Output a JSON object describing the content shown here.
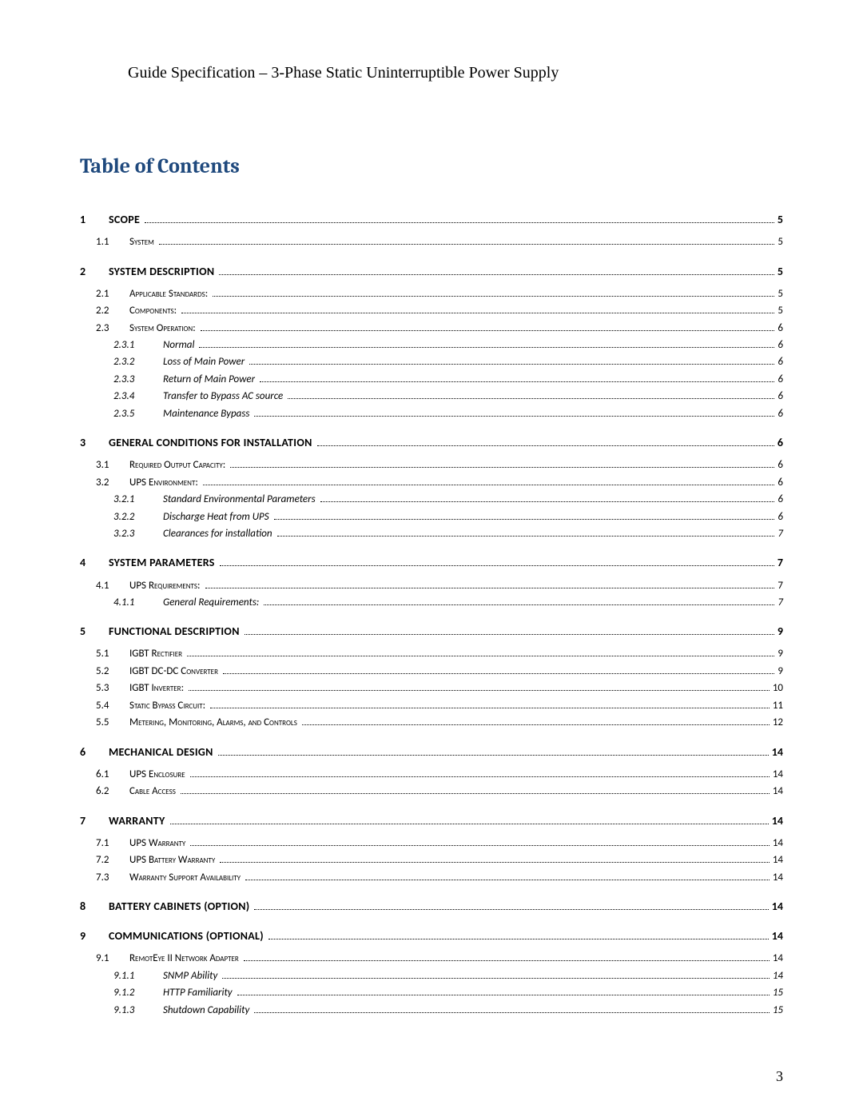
{
  "header": "Guide Specification – 3-Phase Static Uninterruptible Power Supply",
  "toc_heading": "Table of Contents",
  "page_number": "3",
  "entries": [
    {
      "level": 1,
      "num": "1",
      "title": "SCOPE",
      "page": "5"
    },
    {
      "level": 2,
      "num": "1.1",
      "title": "System",
      "page": "5"
    },
    {
      "level": 1,
      "num": "2",
      "title": "SYSTEM DESCRIPTION",
      "page": "5"
    },
    {
      "level": 2,
      "num": "2.1",
      "title": "Applicable Standards:",
      "page": "5"
    },
    {
      "level": 2,
      "num": "2.2",
      "title": "Components:",
      "page": "5"
    },
    {
      "level": 2,
      "num": "2.3",
      "title": "System Operation:",
      "page": "6"
    },
    {
      "level": 3,
      "num": "2.3.1",
      "title": "Normal",
      "page": "6"
    },
    {
      "level": 3,
      "num": "2.3.2",
      "title": "Loss of Main Power",
      "page": "6"
    },
    {
      "level": 3,
      "num": "2.3.3",
      "title": "Return of Main Power",
      "page": "6"
    },
    {
      "level": 3,
      "num": "2.3.4",
      "title": "Transfer to Bypass AC source",
      "page": "6"
    },
    {
      "level": 3,
      "num": "2.3.5",
      "title": "Maintenance Bypass",
      "page": "6"
    },
    {
      "level": 1,
      "num": "3",
      "title": "GENERAL CONDITIONS FOR INSTALLATION",
      "page": "6"
    },
    {
      "level": 2,
      "num": "3.1",
      "title": "Required Output Capacity:",
      "page": "6"
    },
    {
      "level": 2,
      "num": "3.2",
      "title": "UPS Environment:",
      "page": "6"
    },
    {
      "level": 3,
      "num": "3.2.1",
      "title": "Standard Environmental Parameters",
      "page": "6"
    },
    {
      "level": 3,
      "num": "3.2.2",
      "title": "Discharge Heat from UPS",
      "page": "6"
    },
    {
      "level": 3,
      "num": "3.2.3",
      "title": "Clearances for installation",
      "page": "7"
    },
    {
      "level": 1,
      "num": "4",
      "title": "SYSTEM PARAMETERS",
      "page": "7"
    },
    {
      "level": 2,
      "num": "4.1",
      "title": "UPS Requirements:",
      "page": "7"
    },
    {
      "level": 3,
      "num": "4.1.1",
      "title": "General Requirements:",
      "page": "7"
    },
    {
      "level": 1,
      "num": "5",
      "title": "FUNCTIONAL DESCRIPTION",
      "page": "9"
    },
    {
      "level": 2,
      "num": "5.1",
      "title": "IGBT Rectifier",
      "page": "9"
    },
    {
      "level": 2,
      "num": "5.2",
      "title": "IGBT DC-DC Converter",
      "page": "9"
    },
    {
      "level": 2,
      "num": "5.3",
      "title": "IGBT Inverter:",
      "page": "10"
    },
    {
      "level": 2,
      "num": "5.4",
      "title": "Static Bypass Circuit:",
      "page": "11"
    },
    {
      "level": 2,
      "num": "5.5",
      "title": "Metering, Monitoring, Alarms, and Controls",
      "page": "12"
    },
    {
      "level": 1,
      "num": "6",
      "title": "MECHANICAL DESIGN",
      "page": "14"
    },
    {
      "level": 2,
      "num": "6.1",
      "title": "UPS Enclosure",
      "page": "14"
    },
    {
      "level": 2,
      "num": "6.2",
      "title": "Cable Access",
      "page": "14"
    },
    {
      "level": 1,
      "num": "7",
      "title": "WARRANTY",
      "page": "14"
    },
    {
      "level": 2,
      "num": "7.1",
      "title": "UPS Warranty",
      "page": "14"
    },
    {
      "level": 2,
      "num": "7.2",
      "title": "UPS Battery Warranty",
      "page": "14"
    },
    {
      "level": 2,
      "num": "7.3",
      "title": "Warranty Support Availability",
      "page": "14"
    },
    {
      "level": 1,
      "num": "8",
      "title": "BATTERY CABINETS (OPTION)",
      "page": "14"
    },
    {
      "level": 1,
      "num": "9",
      "title": "COMMUNICATIONS (OPTIONAL)",
      "page": "14"
    },
    {
      "level": 2,
      "num": "9.1",
      "title": "RemotEye II Network Adapter",
      "page": "14"
    },
    {
      "level": 3,
      "num": "9.1.1",
      "title": "SNMP Ability",
      "page": "14"
    },
    {
      "level": 3,
      "num": "9.1.2",
      "title": "HTTP Familiarity",
      "page": "15"
    },
    {
      "level": 3,
      "num": "9.1.3",
      "title": "Shutdown Capability",
      "page": "15"
    }
  ]
}
